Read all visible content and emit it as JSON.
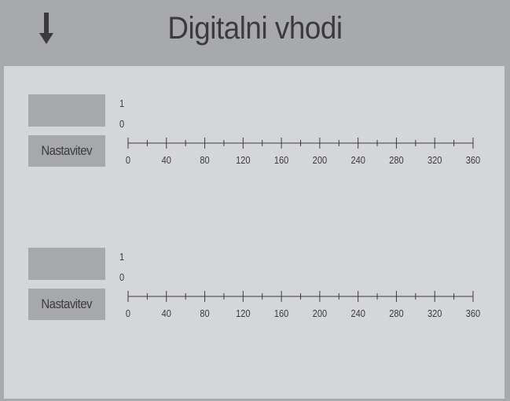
{
  "header": {
    "title": "Digitalni vhodi",
    "back_icon": "down-arrow-icon"
  },
  "channels": [
    {
      "settings_label": "Nastavitev",
      "y_labels": [
        "1",
        "0"
      ],
      "x_ticks": [
        "0",
        "40",
        "80",
        "120",
        "160",
        "200",
        "240",
        "280",
        "320",
        "360"
      ]
    },
    {
      "settings_label": "Nastavitev",
      "y_labels": [
        "1",
        "0"
      ],
      "x_ticks": [
        "0",
        "40",
        "80",
        "120",
        "160",
        "200",
        "240",
        "280",
        "320",
        "360"
      ]
    }
  ],
  "colors": {
    "background": "#a8a9ab",
    "panel": "#d5d6d8",
    "box": "#a7a8aa",
    "text": "#3b3b3d"
  }
}
